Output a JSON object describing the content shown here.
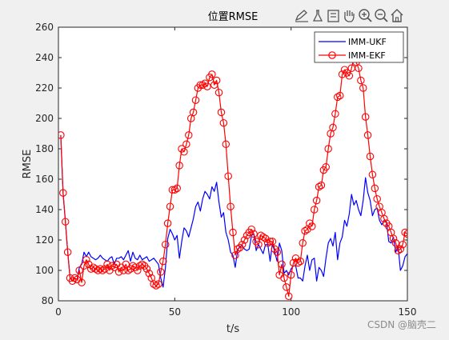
{
  "chart_data": {
    "type": "line",
    "title": "位置RMSE",
    "xlabel": "t/s",
    "ylabel": "RMSE",
    "xlim": [
      0,
      150
    ],
    "ylim": [
      80,
      260
    ],
    "xticks": [
      "0",
      "50",
      "100",
      "150"
    ],
    "yticks": [
      "80",
      "100",
      "120",
      "140",
      "160",
      "180",
      "200",
      "220",
      "240",
      "260"
    ],
    "grid": false,
    "legend_position": "top-right",
    "series": [
      {
        "name": "IMM-UKF",
        "color": "#0000ff",
        "marker": "none",
        "x": [
          1,
          2,
          3,
          4,
          5,
          6,
          7,
          8,
          9,
          10,
          11,
          12,
          13,
          14,
          15,
          16,
          17,
          18,
          19,
          20,
          21,
          22,
          23,
          24,
          25,
          26,
          27,
          28,
          29,
          30,
          31,
          32,
          33,
          34,
          35,
          36,
          37,
          38,
          39,
          40,
          41,
          42,
          43,
          44,
          45,
          46,
          47,
          48,
          49,
          50,
          51,
          52,
          53,
          54,
          55,
          56,
          57,
          58,
          59,
          60,
          61,
          62,
          63,
          64,
          65,
          66,
          67,
          68,
          69,
          70,
          71,
          72,
          73,
          74,
          75,
          76,
          77,
          78,
          79,
          80,
          81,
          82,
          83,
          84,
          85,
          86,
          87,
          88,
          89,
          90,
          91,
          92,
          93,
          94,
          95,
          96,
          97,
          98,
          99,
          100,
          101,
          102,
          103,
          104,
          105,
          106,
          107,
          108,
          109,
          110,
          111,
          112,
          113,
          114,
          115,
          116,
          117,
          118,
          119,
          120,
          121,
          122,
          123,
          124,
          125,
          126,
          127,
          128,
          129,
          130,
          131,
          132,
          133,
          134,
          135,
          136,
          137,
          138,
          139,
          140,
          141,
          142,
          143,
          144,
          145,
          146,
          147,
          148,
          149,
          150
        ],
        "y": [
          189,
          151,
          132,
          112,
          95,
          93,
          95,
          94,
          102,
          104,
          112,
          109,
          112,
          109,
          108,
          107,
          108,
          110,
          108,
          107,
          106,
          108,
          109,
          104,
          108,
          108,
          109,
          107,
          110,
          113,
          106,
          112,
          108,
          107,
          110,
          107,
          108,
          109,
          106,
          107,
          108,
          106,
          104,
          95,
          89,
          102,
          121,
          127,
          124,
          120,
          123,
          108,
          119,
          128,
          126,
          122,
          128,
          134,
          142,
          145,
          139,
          147,
          152,
          150,
          147,
          155,
          152,
          158,
          145,
          135,
          138,
          125,
          120,
          112,
          110,
          102,
          113,
          116,
          116,
          114,
          113,
          114,
          123,
          124,
          113,
          117,
          114,
          111,
          117,
          117,
          106,
          118,
          112,
          106,
          118,
          113,
          98,
          100,
          97,
          101,
          103,
          103,
          95,
          95,
          93,
          103,
          110,
          100,
          107,
          108,
          93,
          102,
          100,
          96,
          108,
          118,
          121,
          116,
          125,
          107,
          118,
          122,
          133,
          129,
          137,
          150,
          143,
          146,
          140,
          136,
          146,
          161,
          151,
          146,
          136,
          140,
          141,
          133,
          130,
          133,
          132,
          119,
          118,
          122,
          112,
          116,
          100,
          103,
          109,
          111
        ]
      },
      {
        "name": "IMM-EKF",
        "color": "#ff0000",
        "marker": "circle",
        "x": [
          1,
          2,
          3,
          4,
          5,
          6,
          7,
          8,
          9,
          10,
          11,
          12,
          13,
          14,
          15,
          16,
          17,
          18,
          19,
          20,
          21,
          22,
          23,
          24,
          25,
          26,
          27,
          28,
          29,
          30,
          31,
          32,
          33,
          34,
          35,
          36,
          37,
          38,
          39,
          40,
          41,
          42,
          43,
          44,
          45,
          46,
          47,
          48,
          49,
          50,
          51,
          52,
          53,
          54,
          55,
          56,
          57,
          58,
          59,
          60,
          61,
          62,
          63,
          64,
          65,
          66,
          67,
          68,
          69,
          70,
          71,
          72,
          73,
          74,
          75,
          76,
          77,
          78,
          79,
          80,
          81,
          82,
          83,
          84,
          85,
          86,
          87,
          88,
          89,
          90,
          91,
          92,
          93,
          94,
          95,
          96,
          97,
          98,
          99,
          100,
          101,
          102,
          103,
          104,
          105,
          106,
          107,
          108,
          109,
          110,
          111,
          112,
          113,
          114,
          115,
          116,
          117,
          118,
          119,
          120,
          121,
          122,
          123,
          124,
          125,
          126,
          127,
          128,
          129,
          130,
          131,
          132,
          133,
          134,
          135,
          136,
          137,
          138,
          139,
          140,
          141,
          142,
          143,
          144,
          145,
          146,
          147,
          148,
          149,
          150
        ],
        "y": [
          189,
          151,
          132,
          112,
          95,
          93,
          95,
          94,
          100,
          92,
          103,
          107,
          104,
          101,
          102,
          101,
          100,
          101,
          100,
          101,
          104,
          100,
          103,
          102,
          104,
          99,
          102,
          100,
          104,
          100,
          101,
          103,
          102,
          100,
          103,
          104,
          103,
          101,
          98,
          95,
          91,
          90,
          91,
          99,
          106,
          117,
          131,
          142,
          153,
          153,
          154,
          169,
          180,
          178,
          183,
          189,
          200,
          204,
          212,
          220,
          222,
          222,
          223,
          221,
          227,
          229,
          222,
          225,
          217,
          204,
          197,
          183,
          162,
          142,
          125,
          110,
          114,
          115,
          117,
          120,
          123,
          125,
          127,
          124,
          119,
          117,
          123,
          122,
          121,
          118,
          119,
          119,
          114,
          112,
          97,
          104,
          95,
          89,
          83,
          97,
          105,
          108,
          105,
          106,
          118,
          126,
          127,
          131,
          129,
          140,
          146,
          155,
          156,
          166,
          168,
          180,
          190,
          194,
          203,
          214,
          215,
          229,
          232,
          230,
          228,
          233,
          240,
          237,
          233,
          225,
          220,
          201,
          189,
          175,
          163,
          154,
          147,
          142,
          138,
          134,
          131,
          129,
          125,
          121,
          118,
          113,
          114,
          117,
          125,
          124
        ]
      }
    ]
  },
  "toolbar": {
    "icons": [
      "annotate-icon",
      "clear-icon",
      "save-icon",
      "pan-icon",
      "zoom-in-icon",
      "zoom-out-icon",
      "home-icon"
    ]
  },
  "watermark": "CSDN @脑壳二"
}
